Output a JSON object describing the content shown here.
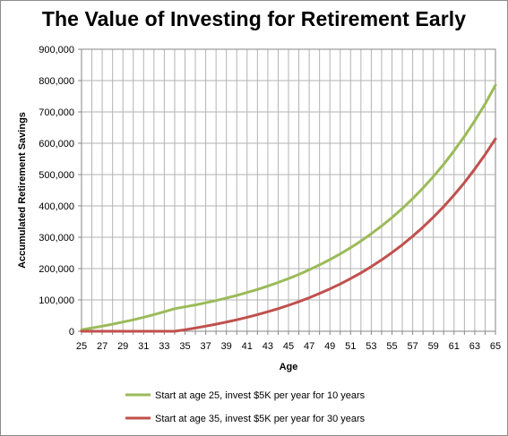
{
  "chart_data": {
    "type": "line",
    "title": "The Value of Investing for Retirement Early",
    "xlabel": "Age",
    "ylabel": "Accumulated Retirement Savings",
    "xlim": [
      25,
      65
    ],
    "ylim": [
      0,
      900000
    ],
    "x_ticks": [
      25,
      27,
      29,
      31,
      33,
      35,
      37,
      39,
      41,
      43,
      45,
      47,
      49,
      51,
      53,
      55,
      57,
      59,
      61,
      63,
      65
    ],
    "y_ticks": [
      0,
      100000,
      200000,
      300000,
      400000,
      500000,
      600000,
      700000,
      800000,
      900000
    ],
    "y_tick_labels": [
      "0",
      "100,000",
      "200,000",
      "300,000",
      "400,000",
      "500,000",
      "600,000",
      "700,000",
      "800,000",
      "900,000"
    ],
    "grid": true,
    "legend_position": "bottom",
    "x": [
      25,
      26,
      27,
      28,
      29,
      30,
      31,
      32,
      33,
      34,
      35,
      36,
      37,
      38,
      39,
      40,
      41,
      42,
      43,
      44,
      45,
      46,
      47,
      48,
      49,
      50,
      51,
      52,
      53,
      54,
      55,
      56,
      57,
      58,
      59,
      60,
      61,
      62,
      63,
      64,
      65
    ],
    "series": [
      {
        "name": "Start at age 25, invest $5K per year  for 10 years",
        "color": "#9bbb59",
        "values": [
          5000,
          10400,
          16200,
          22500,
          29300,
          36600,
          44500,
          53000,
          62200,
          72100,
          77900,
          84100,
          90800,
          98100,
          105900,
          114400,
          123600,
          133400,
          144100,
          155600,
          168100,
          181500,
          196000,
          211700,
          228700,
          247000,
          266700,
          288100,
          311100,
          336000,
          362900,
          391900,
          423300,
          457200,
          493700,
          533200,
          575900,
          621900,
          671700,
          725400,
          785400
        ]
      },
      {
        "name": "Start at age 35, invest $5K per year  for 30 years",
        "color": "#c0504d",
        "values": [
          0,
          0,
          0,
          0,
          0,
          0,
          0,
          0,
          0,
          0,
          5000,
          10400,
          16200,
          22500,
          29300,
          36600,
          44500,
          53000,
          62200,
          72100,
          82900,
          94500,
          107000,
          120500,
          135100,
          150900,
          168000,
          186400,
          206300,
          227800,
          251000,
          276000,
          303100,
          332400,
          364000,
          398100,
          434900,
          474700,
          517600,
          564000,
          614100
        ]
      }
    ]
  }
}
